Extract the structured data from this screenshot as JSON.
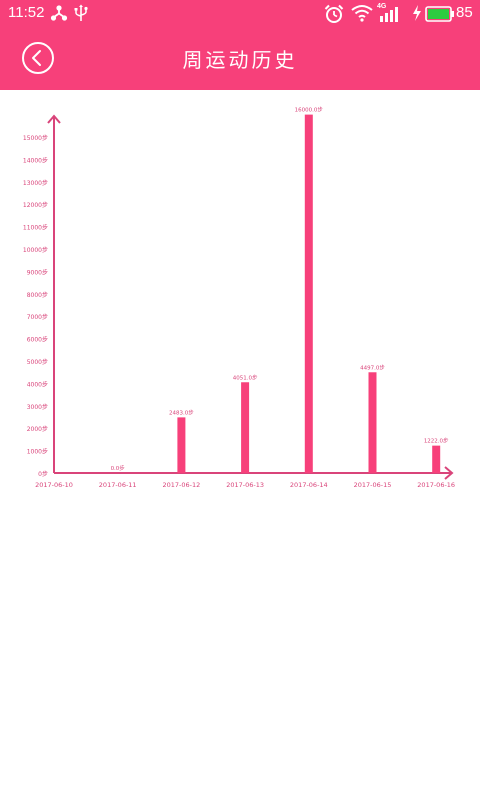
{
  "status_bar": {
    "time": "11:52",
    "network_label": "4G",
    "battery_percent": "85",
    "icons": [
      "share-icon",
      "usb-icon",
      "alarm-clock-icon",
      "wifi-icon",
      "signal-icon",
      "charging-icon",
      "battery-icon"
    ]
  },
  "header": {
    "title": "周运动历史",
    "back_icon": "chevron-left-icon"
  },
  "colors": {
    "accent": "#f7407a",
    "bar": "#f7407a",
    "axis": "#d9447a",
    "label": "#d9447a"
  },
  "chart_data": {
    "type": "bar",
    "categories": [
      "2017-06-10",
      "2017-06-11",
      "2017-06-12",
      "2017-06-13",
      "2017-06-14",
      "2017-06-15",
      "2017-06-16"
    ],
    "values": [
      null,
      0,
      2483,
      4051,
      16000,
      4497,
      1222
    ],
    "data_labels": [
      "",
      "0.0步",
      "2483.0步",
      "4051.0步",
      "16000.0步",
      "4497.0步",
      "1222.0步"
    ],
    "y_ticks": [
      0,
      1000,
      2000,
      3000,
      4000,
      5000,
      6000,
      7000,
      8000,
      9000,
      10000,
      11000,
      12000,
      13000,
      14000,
      15000
    ],
    "y_tick_labels": [
      "0步",
      "1000步",
      "2000步",
      "3000步",
      "4000步",
      "5000步",
      "6000步",
      "7000步",
      "8000步",
      "9000步",
      "10000步",
      "11000步",
      "12000步",
      "13000步",
      "14000步",
      "15000步"
    ],
    "y_unit": "步",
    "ylim": [
      0,
      16000
    ],
    "grid": false,
    "title": "",
    "xlabel": "",
    "ylabel": ""
  }
}
